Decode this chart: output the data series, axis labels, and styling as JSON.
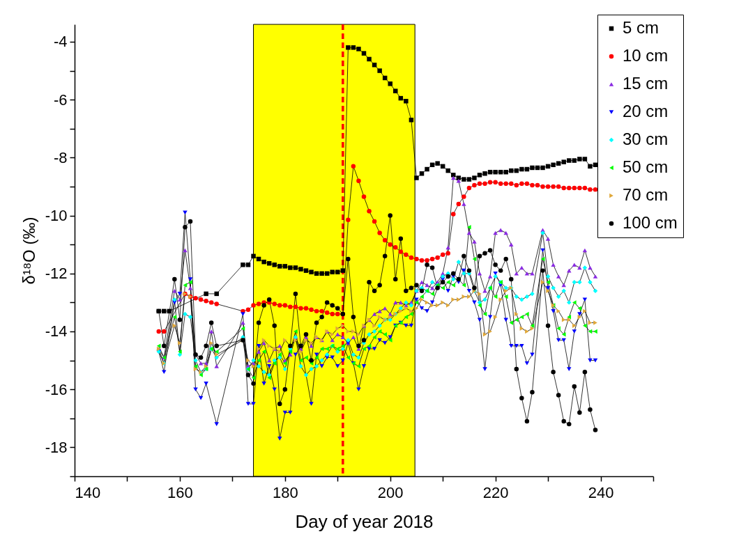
{
  "chart_data": {
    "type": "line",
    "xlabel": "Day of year 2018",
    "ylabel": "δ¹⁸O (‰)",
    "xlim": [
      140,
      250
    ],
    "ylim": [
      -19,
      -3.4
    ],
    "xticks": [
      140,
      {
        "value": 150,
        "label": null
      },
      160,
      {
        "value": 170,
        "label": null
      },
      180,
      {
        "value": 190,
        "label": null
      },
      200,
      {
        "value": 210,
        "label": null
      },
      220,
      {
        "value": 230,
        "label": null
      },
      240,
      {
        "value": 250,
        "label": null
      }
    ],
    "yticks": [
      {
        "value": -19,
        "label": null
      },
      -18,
      {
        "value": -17,
        "label": null
      },
      -16,
      {
        "value": -15,
        "label": null
      },
      -14,
      {
        "value": -13,
        "label": null
      },
      -12,
      {
        "value": -11,
        "label": null
      },
      -10,
      {
        "value": -9,
        "label": null
      },
      -8,
      {
        "value": -7,
        "label": null
      },
      -6,
      {
        "value": -5,
        "label": null
      },
      -4
    ],
    "grid": false,
    "legend": "top right",
    "line_style": "solid",
    "bands": [
      {
        "axis": "x",
        "from": 174,
        "to": 204.7,
        "color": "#ffff00"
      }
    ],
    "ref_lines": [
      {
        "axis": "x",
        "value": 191,
        "color": "#ff0000",
        "line_style": "dashed"
      }
    ],
    "series": [
      {
        "name": "5 cm",
        "color": "#000000",
        "marker": "square",
        "x": [
          156,
          157,
          158,
          165,
          167,
          172,
          173,
          174,
          175,
          176,
          177,
          178,
          179,
          180,
          181,
          182,
          183,
          184,
          185,
          186,
          187,
          188,
          189,
          190,
          191,
          192,
          193,
          194,
          195,
          196,
          197,
          198,
          199,
          200,
          201,
          202,
          203,
          204,
          205,
          206,
          207,
          208,
          209,
          210,
          211,
          212,
          213,
          214,
          215,
          216,
          217,
          218,
          219,
          220,
          221,
          222,
          223,
          224,
          225,
          226,
          227,
          228,
          229,
          230,
          231,
          232,
          233,
          234,
          235,
          236,
          237,
          238,
          239
        ],
        "values": [
          -13.3,
          -13.3,
          -13.3,
          -12.7,
          -12.7,
          -11.7,
          -11.7,
          -11.4,
          -11.5,
          -11.6,
          -11.65,
          -11.7,
          -11.75,
          -11.75,
          -11.8,
          -11.8,
          -11.85,
          -11.9,
          -11.95,
          -12.0,
          -12.0,
          -12.0,
          -11.95,
          -11.95,
          -11.9,
          -4.2,
          -4.2,
          -4.25,
          -4.4,
          -4.6,
          -4.8,
          -5.0,
          -5.25,
          -5.45,
          -5.7,
          -5.95,
          -6.05,
          -6.7,
          -8.7,
          -8.55,
          -8.4,
          -8.25,
          -8.2,
          -8.3,
          -8.45,
          -8.6,
          -8.7,
          -8.75,
          -8.75,
          -8.7,
          -8.6,
          -8.55,
          -8.5,
          -8.5,
          -8.5,
          -8.5,
          -8.45,
          -8.45,
          -8.4,
          -8.4,
          -8.35,
          -8.35,
          -8.35,
          -8.3,
          -8.25,
          -8.2,
          -8.15,
          -8.1,
          -8.1,
          -8.05,
          -8.05,
          -8.3,
          -8.25
        ]
      },
      {
        "name": "10 cm",
        "color": "#ff0000",
        "marker": "circle",
        "x": [
          156,
          157,
          161,
          162,
          163,
          164,
          165,
          166,
          167,
          172,
          173,
          174,
          175,
          176,
          177,
          178,
          179,
          180,
          181,
          182,
          183,
          184,
          185,
          186,
          187,
          188,
          189,
          190,
          191,
          192,
          193,
          194,
          195,
          196,
          197,
          198,
          199,
          200,
          201,
          202,
          203,
          204,
          205,
          206,
          207,
          208,
          209,
          210,
          211,
          212,
          213,
          214,
          215,
          216,
          217,
          218,
          219,
          220,
          221,
          222,
          223,
          224,
          225,
          226,
          227,
          228,
          229,
          230,
          231,
          232,
          233,
          234,
          235,
          236,
          237,
          238,
          239
        ],
        "values": [
          -14.0,
          -14.0,
          -12.7,
          -12.8,
          -12.85,
          -12.9,
          -12.95,
          -13.0,
          -13.05,
          -13.3,
          -13.25,
          -13.1,
          -13.05,
          -13.0,
          -13.0,
          -13.05,
          -13.1,
          -13.1,
          -13.15,
          -13.15,
          -13.2,
          -13.2,
          -13.25,
          -13.3,
          -13.3,
          -13.35,
          -13.4,
          -13.4,
          -13.4,
          -10.15,
          -8.3,
          -8.8,
          -9.35,
          -9.85,
          -10.2,
          -10.6,
          -10.85,
          -11.0,
          -11.1,
          -11.25,
          -11.35,
          -11.45,
          -11.5,
          -11.55,
          -11.55,
          -11.5,
          -11.45,
          -11.35,
          -11.3,
          -9.95,
          -9.6,
          -9.35,
          -9.05,
          -8.95,
          -8.9,
          -8.9,
          -8.85,
          -8.85,
          -8.9,
          -8.9,
          -8.9,
          -8.95,
          -8.9,
          -8.9,
          -8.95,
          -8.95,
          -9.0,
          -9.0,
          -9.0,
          -9.0,
          -9.05,
          -9.05,
          -9.05,
          -9.05,
          -9.05,
          -9.1,
          -9.1
        ]
      },
      {
        "name": "15 cm",
        "color": "#8a2be2",
        "marker": "triangle",
        "x": [
          156,
          157,
          159,
          160,
          161,
          162,
          163,
          164,
          165,
          166,
          167,
          172,
          173,
          174,
          175,
          176,
          177,
          178,
          179,
          180,
          181,
          182,
          183,
          184,
          185,
          186,
          187,
          188,
          189,
          190,
          191,
          192,
          193,
          194,
          195,
          196,
          197,
          198,
          199,
          200,
          201,
          202,
          203,
          204,
          205,
          206,
          207,
          208,
          209,
          210,
          211,
          212,
          213,
          214,
          215,
          216,
          217,
          218,
          219,
          220,
          221,
          222,
          223,
          224,
          225,
          226,
          227,
          229,
          230,
          231,
          232,
          233,
          234,
          235,
          236,
          237,
          238,
          239
        ],
        "values": [
          -14.6,
          -14.9,
          -12.6,
          -12.9,
          -11.2,
          -12.5,
          -14.8,
          -15.1,
          -15.1,
          -14.0,
          -15.2,
          -13.7,
          -15.2,
          -15.1,
          -14.7,
          -14.4,
          -15.0,
          -14.6,
          -14.5,
          -15.0,
          -14.8,
          -14.2,
          -14.6,
          -14.2,
          -14.5,
          -14.2,
          -14.3,
          -14.0,
          -14.3,
          -14.1,
          -14.2,
          -14.4,
          -14.2,
          -14.6,
          -13.8,
          -13.6,
          -13.4,
          -13.3,
          -13.2,
          -13.4,
          -13.0,
          -13.0,
          -13.1,
          -13.0,
          -12.6,
          -12.3,
          -12.4,
          -12.5,
          -12.3,
          -12.0,
          -11.1,
          -8.7,
          -8.8,
          -9.6,
          -10.6,
          -10.9,
          -12.0,
          -12.6,
          -12.1,
          -10.6,
          -10.5,
          -10.6,
          -11.0,
          -12.0,
          -11.8,
          -12.0,
          -12.0,
          -10.5,
          -10.8,
          -11.7,
          -12.1,
          -12.4,
          -11.9,
          -11.7,
          -11.8,
          -11.2,
          -11.8,
          -12.1
        ]
      },
      {
        "name": "20 cm",
        "color": "#0000ff",
        "marker": "triangle-down",
        "x": [
          156,
          157,
          159,
          160,
          161,
          162,
          163,
          164,
          165,
          167,
          172,
          173,
          174,
          175,
          176,
          177,
          178,
          179,
          180,
          181,
          182,
          183,
          185,
          186,
          187,
          188,
          189,
          190,
          191,
          192,
          193,
          194,
          195,
          196,
          197,
          198,
          199,
          200,
          201,
          202,
          203,
          204,
          205,
          206,
          207,
          208,
          209,
          210,
          211,
          212,
          213,
          214,
          215,
          216,
          217,
          218,
          219,
          220,
          221,
          222,
          223,
          224,
          225,
          226,
          227,
          229,
          230,
          231,
          232,
          233,
          234,
          235,
          236,
          237,
          238,
          239
        ],
        "values": [
          -14.7,
          -15.4,
          -13.0,
          -12.7,
          -9.9,
          -12.2,
          -16.0,
          -16.3,
          -15.8,
          -17.2,
          -13.4,
          -16.5,
          -16.5,
          -14.5,
          -15.8,
          -15.2,
          -16.0,
          -17.7,
          -16.8,
          -16.8,
          -14.8,
          -14.5,
          -16.5,
          -14.8,
          -15.2,
          -14.9,
          -14.9,
          -15.2,
          -15.0,
          -14.4,
          -15.1,
          -16.0,
          -15.2,
          -14.6,
          -14.6,
          -14.3,
          -14.4,
          -14.2,
          -13.8,
          -13.7,
          -13.8,
          -13.8,
          -12.9,
          -13.2,
          -13.3,
          -13.0,
          -12.5,
          -12.2,
          -12.6,
          -12.1,
          -12.3,
          -11.9,
          -12.6,
          -13.0,
          -13.6,
          -15.3,
          -13.5,
          -12.0,
          -12.4,
          -13.6,
          -14.5,
          -14.5,
          -14.5,
          -15.1,
          -14.8,
          -11.2,
          -12.5,
          -13.3,
          -14.3,
          -14.3,
          -15.3,
          -14.0,
          -13.4,
          -12.9,
          -15.0,
          -15.0
        ]
      },
      {
        "name": "30 cm",
        "color": "#00ffff",
        "marker": "diamond",
        "x": [
          156,
          157,
          159,
          160,
          161,
          162,
          163,
          164,
          165,
          166,
          167,
          172,
          173,
          174,
          175,
          176,
          177,
          178,
          179,
          180,
          181,
          182,
          183,
          184,
          185,
          186,
          187,
          188,
          189,
          190,
          191,
          192,
          193,
          194,
          195,
          196,
          197,
          198,
          199,
          200,
          201,
          202,
          203,
          204,
          205,
          206,
          207,
          208,
          209,
          210,
          211,
          212,
          213,
          214,
          215,
          216,
          217,
          218,
          219,
          220,
          221,
          222,
          223,
          224,
          225,
          226,
          227,
          229,
          230,
          231,
          232,
          233,
          234,
          235,
          236,
          237,
          238,
          239
        ],
        "values": [
          -14.7,
          -15.1,
          -12.9,
          -14.8,
          -13.4,
          -13.5,
          -15.0,
          -15.4,
          -15.3,
          -14.6,
          -14.9,
          -14.2,
          -15.3,
          -15.0,
          -15.2,
          -15.4,
          -15.5,
          -15.0,
          -14.9,
          -15.3,
          -14.6,
          -14.2,
          -15.2,
          -15.5,
          -15.3,
          -15.2,
          -15.0,
          -14.8,
          -14.5,
          -14.7,
          -14.6,
          -14.3,
          -14.8,
          -14.9,
          -14.4,
          -14.1,
          -14.0,
          -13.8,
          -13.6,
          -13.6,
          -13.4,
          -13.2,
          -13.0,
          -13.1,
          -12.6,
          -12.5,
          -12.6,
          -12.3,
          -12.4,
          -12.1,
          -12.0,
          -12.2,
          -11.6,
          -12.0,
          -12.0,
          -12.6,
          -13.0,
          -12.9,
          -12.5,
          -12.1,
          -12.3,
          -12.5,
          -12.5,
          -12.8,
          -12.9,
          -12.8,
          -12.7,
          -10.6,
          -12.1,
          -12.5,
          -12.8,
          -12.6,
          -13.0,
          -12.3,
          -12.3,
          -11.8,
          -12.3,
          -12.6
        ]
      },
      {
        "name": "50 cm",
        "color": "#00ff00",
        "marker": "triangle-left",
        "x": [
          156,
          157,
          159,
          160,
          161,
          162,
          163,
          164,
          165,
          166,
          167,
          172,
          173,
          174,
          175,
          176,
          177,
          178,
          179,
          180,
          181,
          182,
          183,
          184,
          185,
          186,
          187,
          188,
          189,
          190,
          191,
          192,
          193,
          194,
          195,
          196,
          197,
          198,
          199,
          200,
          201,
          202,
          203,
          204,
          205,
          206,
          207,
          208,
          209,
          210,
          211,
          212,
          213,
          214,
          215,
          216,
          217,
          218,
          219,
          220,
          221,
          222,
          223,
          224,
          225,
          226,
          227,
          229,
          230,
          231,
          232,
          233,
          234,
          235,
          236,
          237,
          238,
          239
        ],
        "values": [
          -14.5,
          -14.9,
          -13.5,
          -14.7,
          -12.4,
          -12.3,
          -15.2,
          -15.5,
          -15.3,
          -14.6,
          -14.7,
          -13.9,
          -15.3,
          -15.6,
          -15.0,
          -14.7,
          -15.6,
          -15.1,
          -14.8,
          -15.1,
          -14.7,
          -14.0,
          -15.0,
          -14.9,
          -15.1,
          -14.9,
          -14.6,
          -14.6,
          -14.5,
          -14.6,
          -14.5,
          -14.9,
          -15.1,
          -15.2,
          -14.6,
          -14.5,
          -14.2,
          -14.0,
          -14.1,
          -14.3,
          -13.8,
          -13.7,
          -13.5,
          -13.4,
          -13.0,
          -12.8,
          -12.6,
          -12.7,
          -12.4,
          -12.5,
          -12.3,
          -12.4,
          -12.2,
          -12.4,
          -10.4,
          -11.5,
          -13.1,
          -13.4,
          -12.5,
          -12.8,
          -12.3,
          -12.8,
          -13.7,
          -13.6,
          -13.5,
          -13.4,
          -13.8,
          -11.5,
          -12.3,
          -13.1,
          -13.9,
          -14.1,
          -13.5,
          -13.0,
          -13.2,
          -13.8,
          -14.0,
          -14.0
        ]
      },
      {
        "name": "70 cm",
        "color": "#e0a83a",
        "marker": "triangle-right",
        "x": [
          156,
          157,
          159,
          160,
          161,
          162,
          163,
          164,
          165,
          166,
          167,
          172,
          173,
          174,
          175,
          176,
          177,
          178,
          179,
          180,
          181,
          182,
          183,
          184,
          185,
          186,
          187,
          188,
          189,
          190,
          191,
          192,
          193,
          194,
          195,
          196,
          197,
          198,
          199,
          200,
          201,
          202,
          203,
          204,
          205,
          206,
          207,
          208,
          209,
          210,
          211,
          212,
          213,
          214,
          215,
          216,
          217,
          218,
          219,
          220,
          221,
          222,
          223,
          224,
          225,
          226,
          227,
          229,
          230,
          231,
          232,
          233,
          234,
          235,
          236,
          237,
          238,
          239
        ],
        "values": [
          -14.6,
          -15.1,
          -13.8,
          -14.4,
          -12.7,
          -12.8,
          -15.3,
          -15.4,
          -15.2,
          -14.4,
          -14.8,
          -14.3,
          -15.0,
          -15.2,
          -14.6,
          -14.3,
          -14.5,
          -14.6,
          -14.7,
          -14.3,
          -14.5,
          -14.3,
          -14.7,
          -14.3,
          -14.4,
          -14.2,
          -14.3,
          -14.0,
          -14.1,
          -13.9,
          -13.8,
          -14.0,
          -14.0,
          -14.1,
          -13.8,
          -13.6,
          -13.8,
          -13.5,
          -13.6,
          -13.5,
          -13.4,
          -13.3,
          -13.2,
          -13.3,
          -13.2,
          -12.9,
          -13.0,
          -13.1,
          -13.1,
          -13.0,
          -13.1,
          -12.9,
          -12.9,
          -12.8,
          -12.8,
          -12.6,
          -12.7,
          -14.1,
          -14.0,
          -13.5,
          -12.9,
          -12.6,
          -12.5,
          -13.4,
          -13.9,
          -14.0,
          -13.9,
          -12.3,
          -12.6,
          -13.1,
          -13.3,
          -13.6,
          -13.6,
          -13.8,
          -13.5,
          -13.3,
          -13.7,
          -13.7
        ]
      },
      {
        "name": "100 cm",
        "color": "#000000",
        "marker": "circle",
        "x": [
          156,
          157,
          159,
          160,
          161,
          162,
          163,
          164,
          165,
          166,
          167,
          172,
          173,
          174,
          175,
          176,
          177,
          178,
          179,
          180,
          181,
          182,
          183,
          184,
          185,
          186,
          187,
          188,
          189,
          190,
          191,
          192,
          193,
          194,
          195,
          196,
          197,
          198,
          199,
          200,
          201,
          202,
          203,
          204,
          205,
          206,
          207,
          208,
          209,
          210,
          211,
          212,
          213,
          214,
          215,
          216,
          217,
          218,
          219,
          220,
          221,
          222,
          223,
          224,
          225,
          226,
          227,
          229,
          230,
          231,
          232,
          233,
          234,
          235,
          236,
          237,
          238,
          239
        ],
        "values": [
          -13.3,
          -14.5,
          -12.2,
          -13.6,
          -10.4,
          -10.2,
          -14.8,
          -14.9,
          -14.5,
          -13.7,
          -14.5,
          -14.3,
          -15.5,
          -15.8,
          -13.7,
          -13.1,
          -12.9,
          -13.8,
          -16.5,
          -16.0,
          -14.5,
          -12.7,
          -14.5,
          -14.1,
          -15.0,
          -13.7,
          -13.5,
          -13.0,
          -13.1,
          -13.2,
          -13.4,
          -11.5,
          -13.5,
          -14.5,
          -14.3,
          -12.3,
          -12.6,
          -12.4,
          -11.4,
          -10.0,
          -12.2,
          -10.8,
          -12.6,
          -12.5,
          -12.4,
          -12.6,
          -11.7,
          -11.8,
          -12.5,
          -12.3,
          -12.1,
          -12.0,
          -12.2,
          -11.4,
          -11.9,
          -12.5,
          -11.4,
          -11.3,
          -11.2,
          -11.7,
          -11.9,
          -11.5,
          -12.2,
          -15.3,
          -16.3,
          -17.1,
          -16.1,
          -11.9,
          -13.8,
          -15.4,
          -16.2,
          -17.1,
          -17.2,
          -15.9,
          -16.8,
          -15.4,
          -16.7,
          -17.4
        ]
      }
    ]
  }
}
